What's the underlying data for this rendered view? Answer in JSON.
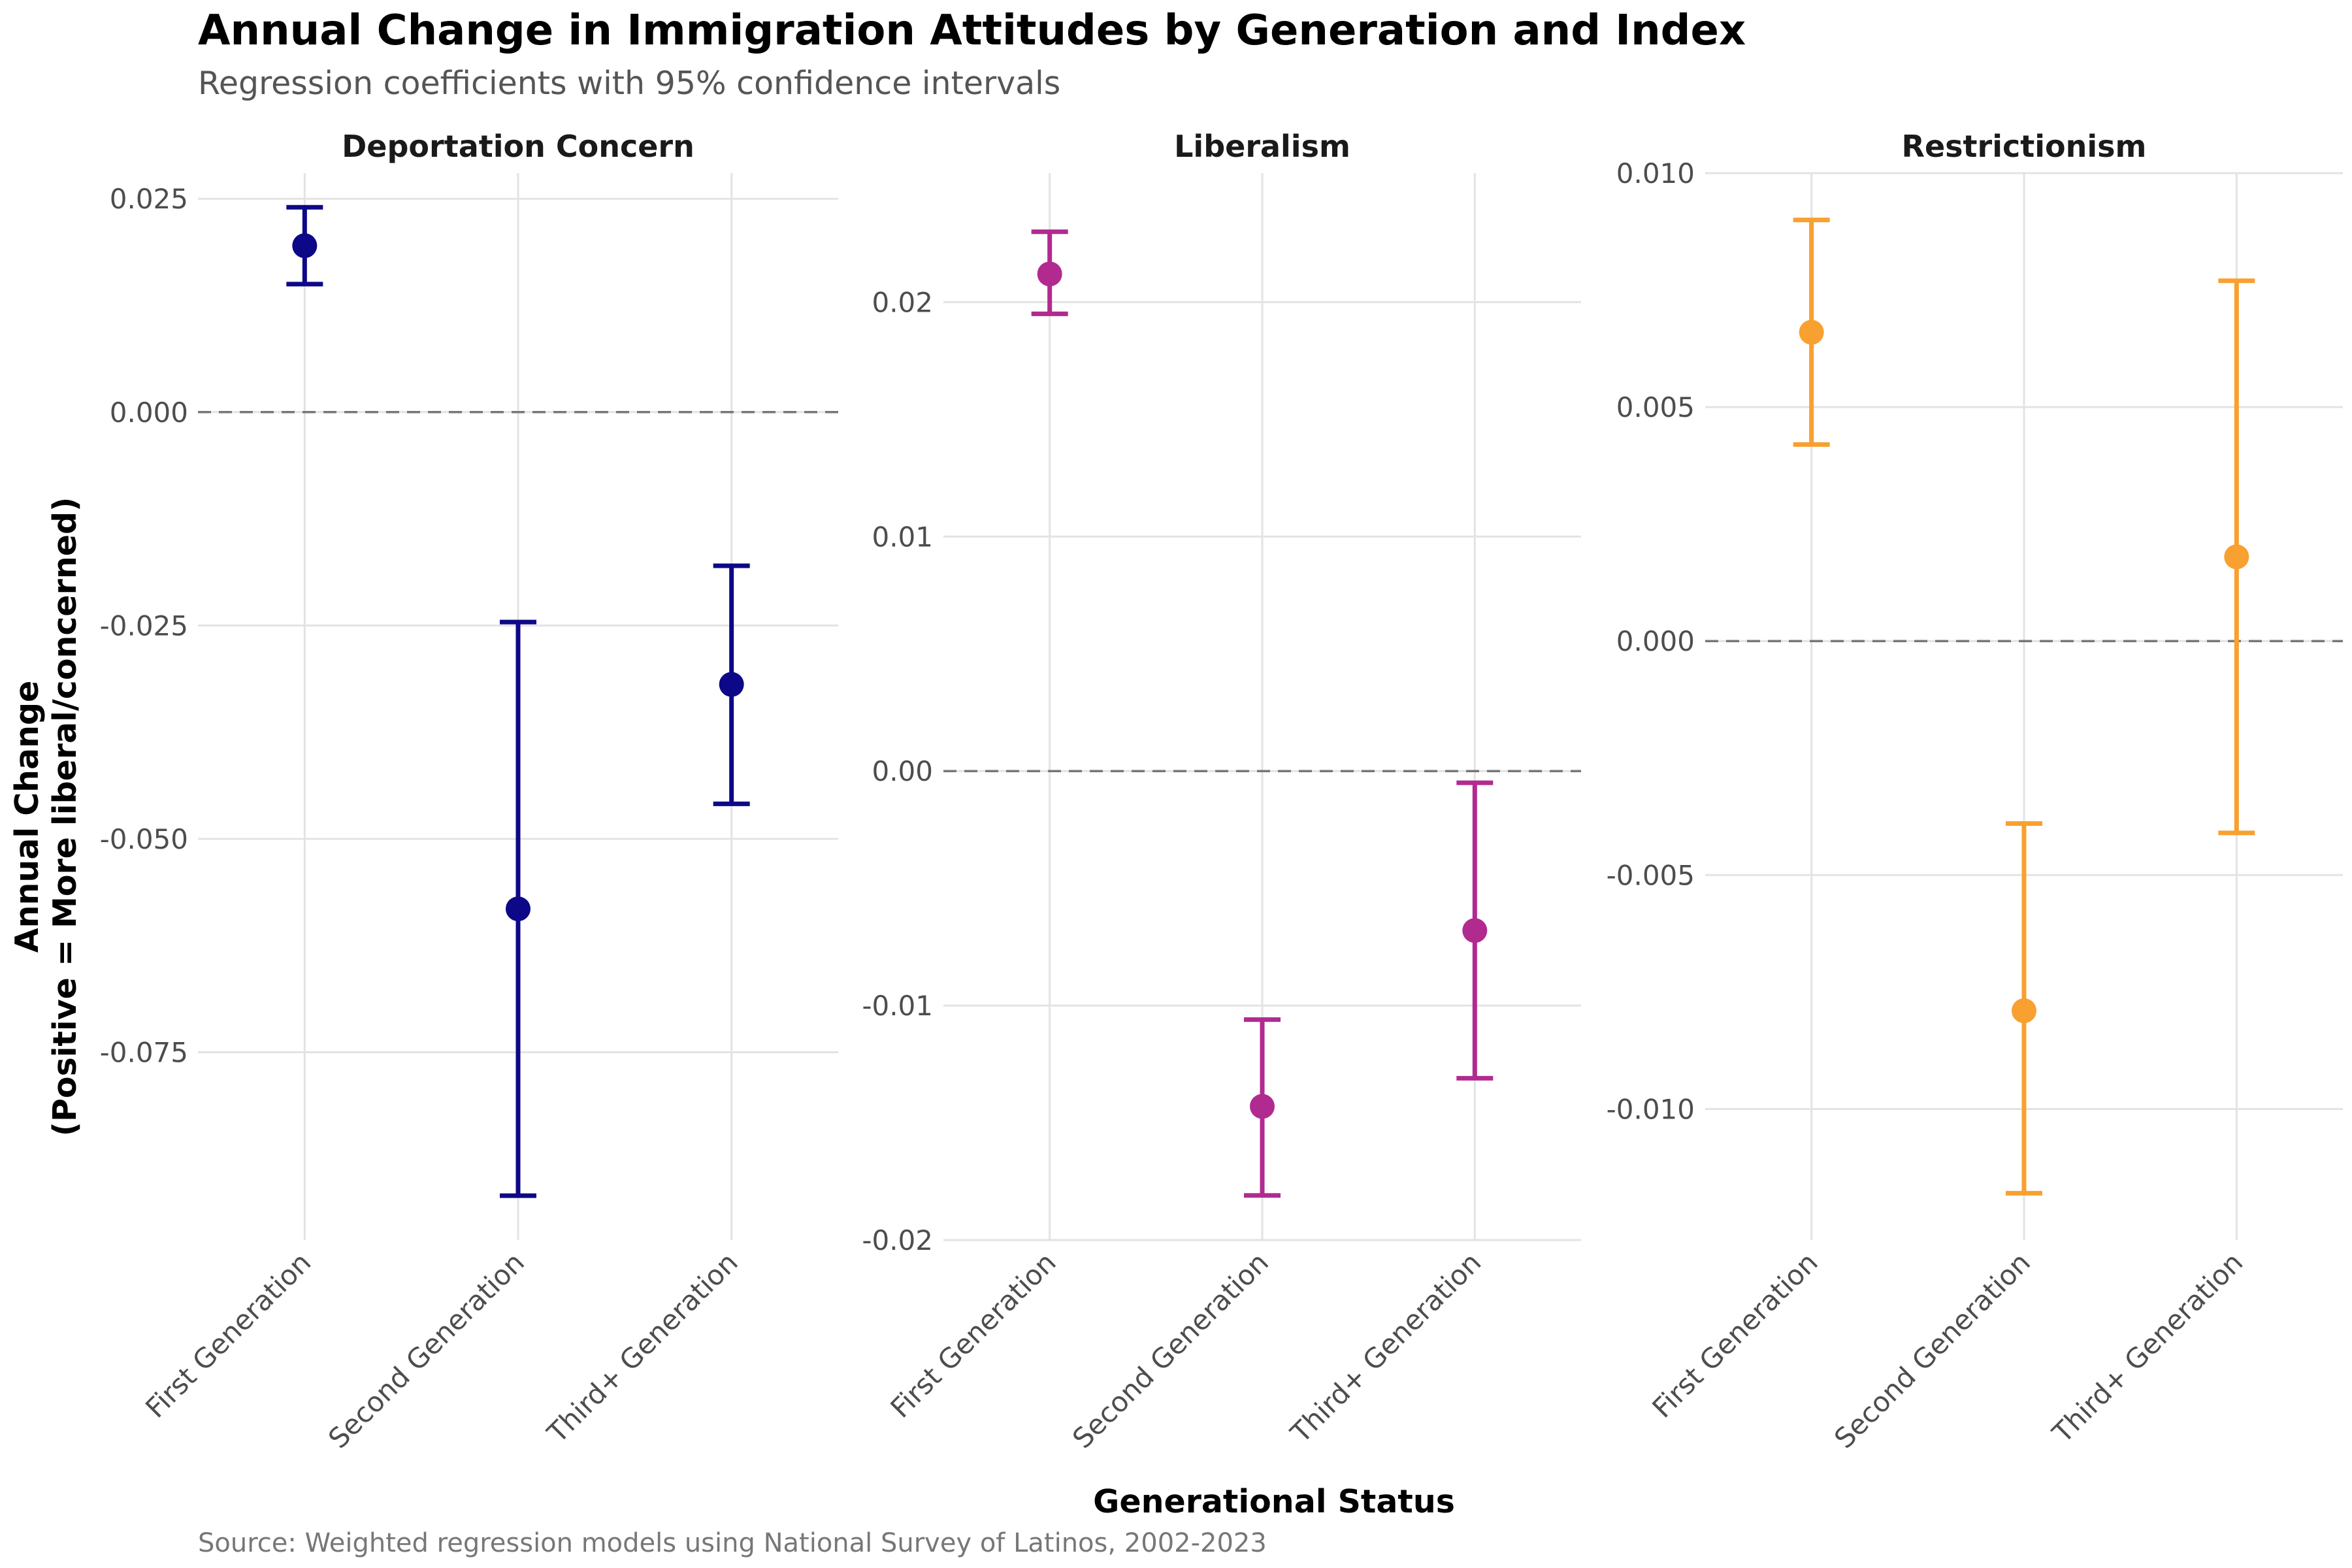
{
  "chart_data": {
    "type": "scatter",
    "subtype": "dot-and-errorbar, faceted",
    "title": "Annual Change in Immigration Attitudes by Generation and Index",
    "subtitle": "Regression coefficients with 95% confidence intervals",
    "caption": "Source: Weighted regression models using National Survey of Latinos, 2002-2023",
    "xlabel": "Generational Status",
    "ylabel_line1": "Annual Change",
    "ylabel_line2": "(Positive = More liberal/concerned)",
    "categories": [
      "First Generation",
      "Second Generation",
      "Third+ Generation"
    ],
    "grid": true,
    "reference_line": 0,
    "panels": [
      {
        "name": "Deportation Concern",
        "color": "#0d0887",
        "ylim": [
          -0.097,
          0.028
        ],
        "yticks": [
          0.025,
          0.0,
          -0.025,
          -0.05,
          -0.075
        ],
        "ytick_labels": [
          "0.025",
          "0.000",
          "-0.025",
          "-0.050",
          "-0.075"
        ],
        "estimates": [
          0.0195,
          -0.0582,
          -0.0319
        ],
        "ci_low": [
          0.015,
          -0.0918,
          -0.0459
        ],
        "ci_high": [
          0.024,
          -0.0246,
          -0.018
        ]
      },
      {
        "name": "Liberalism",
        "color": "#b12a90",
        "ylim": [
          -0.02,
          0.0255
        ],
        "yticks": [
          0.02,
          0.01,
          0.0,
          -0.01,
          -0.02
        ],
        "ytick_labels": [
          "0.02",
          "0.01",
          "0.00",
          "-0.01",
          "-0.02"
        ],
        "estimates": [
          0.0212,
          -0.0143,
          -0.0068
        ],
        "ci_low": [
          0.0195,
          -0.0181,
          -0.0131
        ],
        "ci_high": [
          0.023,
          -0.0106,
          -0.0005
        ]
      },
      {
        "name": "Restrictionism",
        "color": "#f8a030",
        "ylim": [
          -0.0128,
          0.01
        ],
        "yticks": [
          0.01,
          0.005,
          0.0,
          -0.005,
          -0.01
        ],
        "ytick_labels": [
          "0.010",
          "0.005",
          "0.000",
          "-0.005",
          "-0.010"
        ],
        "estimates": [
          0.0066,
          -0.0079,
          0.0018
        ],
        "ci_low": [
          0.0042,
          -0.0118,
          -0.0041
        ],
        "ci_high": [
          0.009,
          -0.0039,
          0.0077
        ]
      }
    ]
  }
}
